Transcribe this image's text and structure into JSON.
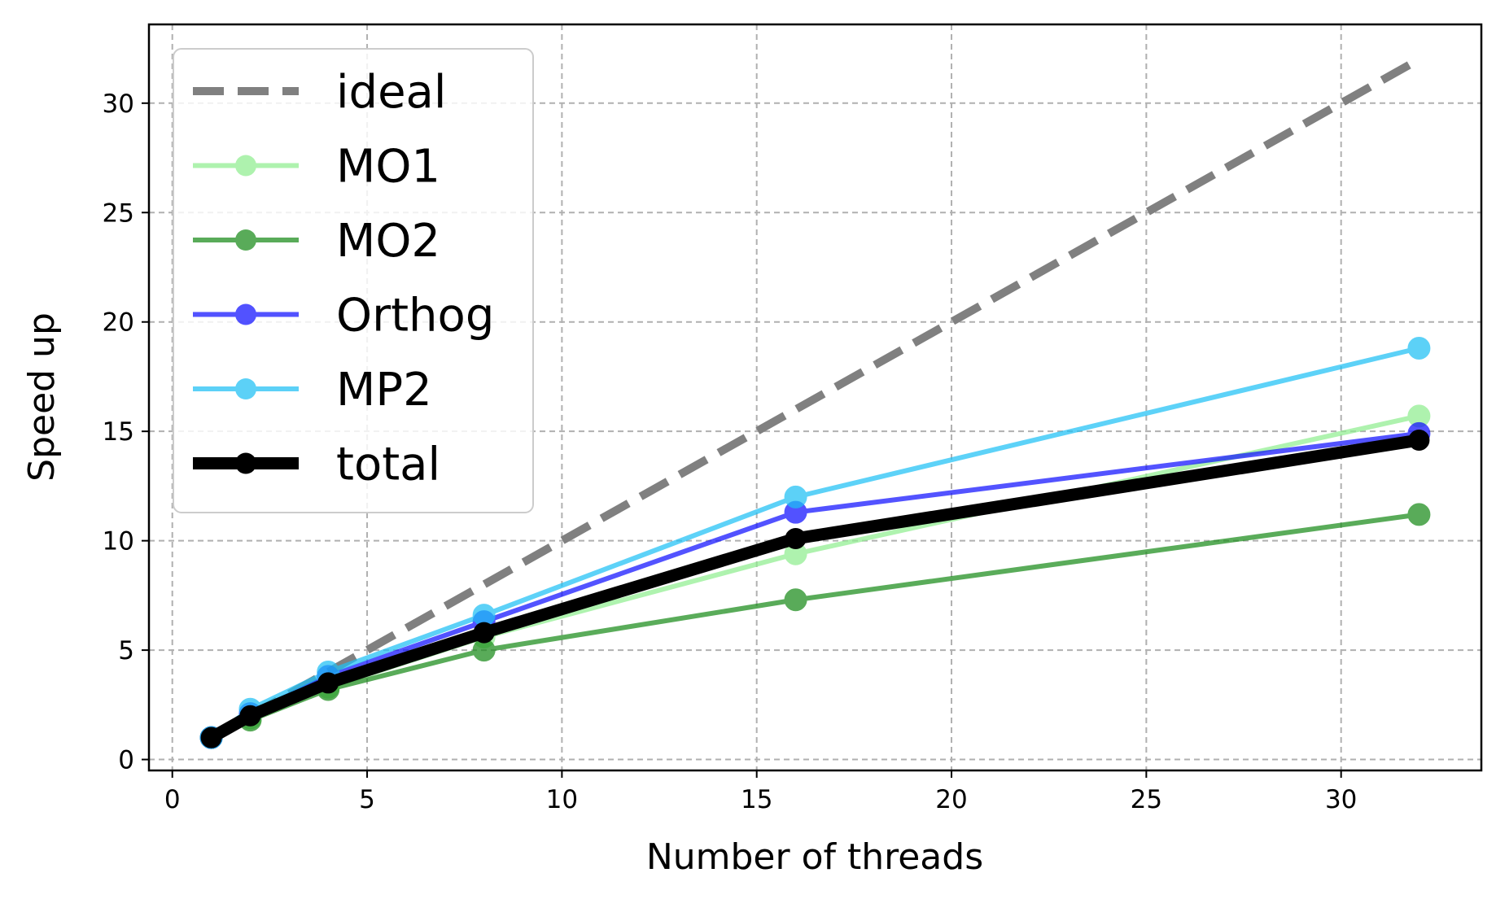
{
  "chart_data": {
    "type": "line",
    "title": "",
    "xlabel": "Number of threads",
    "ylabel": "Speed up",
    "xlim": [
      -0.6,
      33.6
    ],
    "ylim": [
      -0.5,
      33.6
    ],
    "xticks": [
      0,
      5,
      10,
      15,
      20,
      25,
      30
    ],
    "yticks": [
      0,
      5,
      10,
      15,
      20,
      25,
      30
    ],
    "grid": true,
    "legend_position": "upper left",
    "series": [
      {
        "name": "ideal",
        "color": "#808080",
        "style": "dashed",
        "marker": false,
        "x": [
          1,
          32
        ],
        "y": [
          1,
          32
        ]
      },
      {
        "name": "MO1",
        "color": "#90ee90",
        "style": "solid",
        "marker": true,
        "x": [
          1,
          2,
          4,
          8,
          16,
          32
        ],
        "y": [
          1.0,
          1.9,
          3.3,
          5.6,
          9.4,
          15.7
        ]
      },
      {
        "name": "MO2",
        "color": "#1a8c1a",
        "style": "solid",
        "marker": true,
        "x": [
          1,
          2,
          4,
          8,
          16,
          32
        ],
        "y": [
          1.0,
          1.8,
          3.2,
          5.0,
          7.3,
          11.2
        ]
      },
      {
        "name": "Orthog",
        "color": "#1010ff",
        "style": "solid",
        "marker": true,
        "x": [
          1,
          2,
          4,
          8,
          16,
          32
        ],
        "y": [
          1.0,
          2.1,
          3.8,
          6.3,
          11.3,
          14.9
        ]
      },
      {
        "name": "MP2",
        "color": "#1ec0f5",
        "style": "solid",
        "marker": true,
        "x": [
          1,
          2,
          4,
          8,
          16,
          32
        ],
        "y": [
          1.0,
          2.3,
          4.0,
          6.6,
          12.0,
          18.8
        ]
      },
      {
        "name": "total",
        "color": "#000000",
        "style": "solid",
        "marker": true,
        "bold": true,
        "x": [
          1,
          2,
          4,
          8,
          16,
          32
        ],
        "y": [
          1.0,
          2.0,
          3.5,
          5.8,
          10.1,
          14.6
        ]
      }
    ]
  }
}
